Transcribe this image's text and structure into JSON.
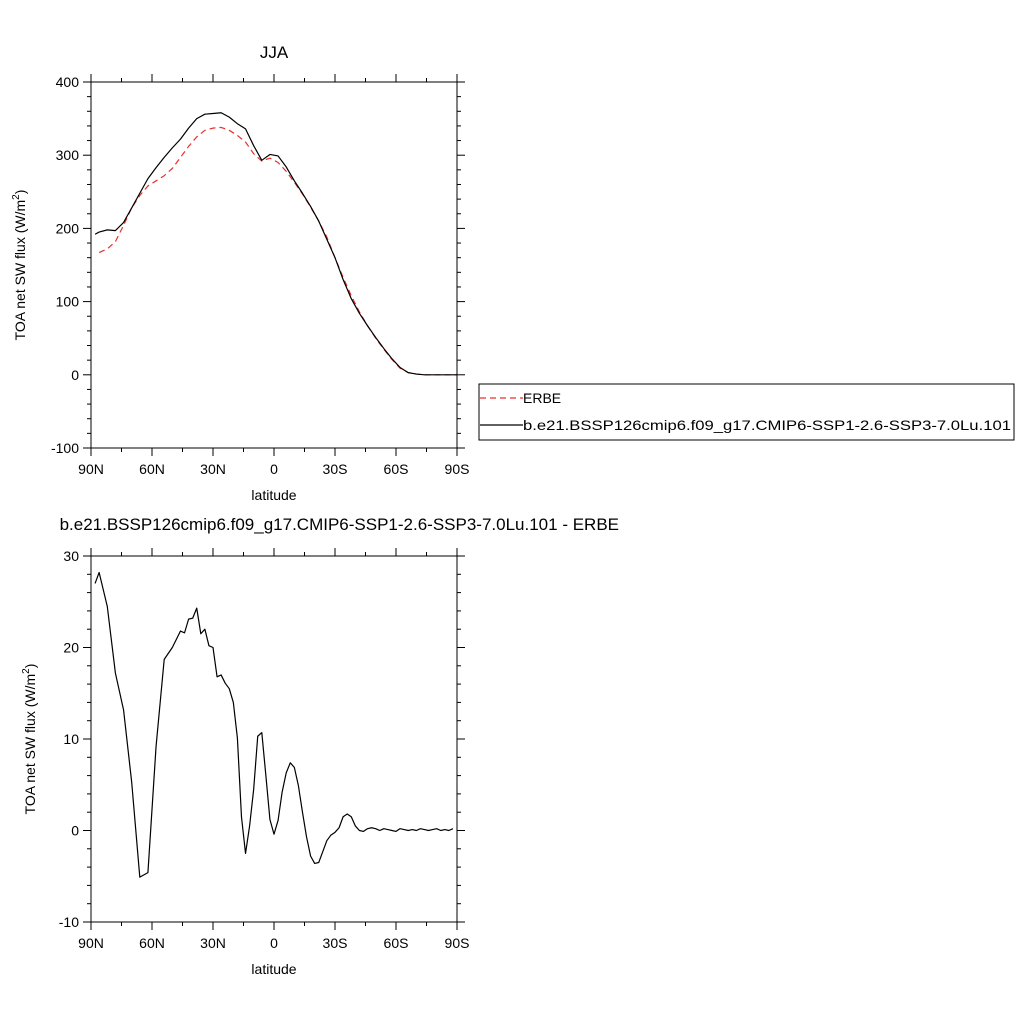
{
  "chart_data": [
    {
      "type": "line",
      "title": "JJA",
      "xlabel": "latitude",
      "ylabel": "TOA net SW flux (W/m²)",
      "xlim": [
        90,
        -90
      ],
      "ylim": [
        -100,
        400
      ],
      "xticks": [
        90,
        60,
        30,
        0,
        -30,
        -60,
        -90
      ],
      "xtick_labels": [
        "90N",
        "60N",
        "30N",
        "0",
        "30S",
        "60S",
        "90S"
      ],
      "yticks": [
        -100,
        0,
        100,
        200,
        300,
        400
      ],
      "ytick_labels": [
        "-100",
        "0",
        "100",
        "200",
        "300",
        "400"
      ],
      "grid": false,
      "legend_position": "outside-right",
      "series": [
        {
          "name": "ERBE",
          "style": "dashed",
          "color": "#e8302c",
          "x": [
            86,
            82,
            78,
            74,
            70,
            66,
            62,
            58,
            54,
            50,
            46,
            42,
            38,
            34,
            30,
            26,
            22,
            18,
            14,
            10,
            6,
            2,
            -2,
            -6,
            -10,
            -14,
            -18,
            -22,
            -26,
            -30,
            -34,
            -38,
            -42,
            -46,
            -50,
            -54,
            -58,
            -62,
            -66,
            -70,
            -74,
            -78,
            -82,
            -86,
            -90
          ],
          "y": [
            167,
            172,
            182,
            204,
            228,
            245,
            258,
            265,
            272,
            282,
            297,
            312,
            325,
            334,
            337,
            338,
            334,
            327,
            318,
            302,
            292,
            296,
            290,
            278,
            263,
            247,
            229,
            210,
            188,
            160,
            133,
            108,
            86,
            67,
            50,
            35,
            21,
            9,
            3,
            1,
            0,
            0,
            0,
            0,
            0
          ]
        },
        {
          "name": "b.e21.BSSP126cmip6.f09_g17.CMIP6-SSP1-2.6-SSP3-7.0Lu.101",
          "style": "solid",
          "color": "#000000",
          "x": [
            88,
            86,
            82,
            78,
            74,
            70,
            66,
            62,
            58,
            54,
            50,
            46,
            42,
            38,
            34,
            30,
            26,
            22,
            18,
            14,
            10,
            6,
            2,
            -2,
            -6,
            -10,
            -14,
            -18,
            -22,
            -26,
            -30,
            -34,
            -38,
            -42,
            -46,
            -50,
            -54,
            -58,
            -62,
            -66,
            -70,
            -74,
            -78,
            -82,
            -86,
            -90
          ],
          "y": [
            192,
            195,
            198,
            197,
            208,
            228,
            248,
            268,
            283,
            297,
            310,
            322,
            337,
            350,
            356,
            357,
            358,
            352,
            343,
            336,
            313,
            293,
            301,
            299,
            284,
            265,
            248,
            230,
            210,
            185,
            160,
            130,
            104,
            84,
            67,
            51,
            36,
            22,
            10,
            3,
            1,
            0,
            0,
            0,
            0,
            0
          ]
        }
      ]
    },
    {
      "type": "line",
      "title": "b.e21.BSSP126cmip6.f09_g17.CMIP6-SSP1-2.6-SSP3-7.0Lu.101 - ERBE",
      "xlabel": "latitude",
      "ylabel": "TOA net SW flux (W/m²)",
      "xlim": [
        90,
        -90
      ],
      "ylim": [
        -10,
        30
      ],
      "xticks": [
        90,
        60,
        30,
        0,
        -30,
        -60,
        -90
      ],
      "xtick_labels": [
        "90N",
        "60N",
        "30N",
        "0",
        "30S",
        "60S",
        "90S"
      ],
      "yticks": [
        -10,
        0,
        10,
        20,
        30
      ],
      "ytick_labels": [
        "-10",
        "0",
        "10",
        "20",
        "30"
      ],
      "grid": false,
      "series": [
        {
          "style": "solid",
          "color": "#000000",
          "x": [
            88,
            86,
            82,
            78,
            74,
            70,
            66,
            62,
            58,
            54,
            50,
            46,
            44,
            42,
            40,
            38,
            36,
            34,
            32,
            30,
            28,
            26,
            24,
            22,
            20,
            18,
            16,
            14,
            12,
            10,
            8,
            6,
            4,
            2,
            0,
            -2,
            -4,
            -6,
            -8,
            -10,
            -12,
            -14,
            -16,
            -18,
            -20,
            -22,
            -24,
            -26,
            -28,
            -30,
            -32,
            -34,
            -36,
            -38,
            -40,
            -42,
            -44,
            -46,
            -48,
            -50,
            -52,
            -54,
            -56,
            -58,
            -60,
            -62,
            -64,
            -66,
            -68,
            -70,
            -72,
            -74,
            -76,
            -78,
            -80,
            -82,
            -84,
            -86,
            -88
          ],
          "y": [
            27.0,
            28.2,
            24.5,
            17.2,
            13.2,
            5.3,
            -5.1,
            -4.6,
            9.2,
            18.7,
            20.0,
            21.8,
            21.6,
            23.1,
            23.2,
            24.3,
            21.5,
            22.0,
            20.2,
            20.0,
            16.8,
            17.0,
            16.1,
            15.5,
            14.0,
            10.1,
            1.5,
            -2.5,
            0.5,
            4.5,
            10.3,
            10.7,
            6.0,
            1.2,
            -0.4,
            1.1,
            4.2,
            6.3,
            7.4,
            6.9,
            4.9,
            2.0,
            -0.7,
            -2.8,
            -3.6,
            -3.5,
            -2.3,
            -1.1,
            -0.5,
            -0.2,
            0.3,
            1.5,
            1.8,
            1.5,
            0.5,
            0.0,
            -0.1,
            0.2,
            0.3,
            0.2,
            0.0,
            0.2,
            0.1,
            0.0,
            -0.1,
            0.2,
            0.1,
            0.0,
            0.1,
            0.0,
            0.2,
            0.1,
            0.0,
            0.1,
            0.2,
            0.0,
            0.1,
            0.0,
            0.2
          ]
        }
      ]
    }
  ]
}
